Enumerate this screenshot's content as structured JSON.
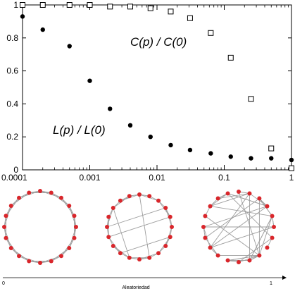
{
  "chart_data": {
    "type": "scatter",
    "x_scale": "log",
    "xlim": [
      0.0001,
      1
    ],
    "ylim": [
      0,
      1
    ],
    "x_ticks": [
      "0.0001",
      "0.001",
      "0.01",
      "0.1",
      "1"
    ],
    "y_ticks": [
      "0",
      "0.2",
      "0.4",
      "0.6",
      "0.8",
      "1"
    ],
    "series": [
      {
        "name": "C(p) / C(0)",
        "marker": "open-square",
        "color": "#000000",
        "x": [
          0.0001,
          0.0002,
          0.0005,
          0.001,
          0.002,
          0.004,
          0.008,
          0.016,
          0.031,
          0.063,
          0.125,
          0.25,
          0.5,
          1
        ],
        "y": [
          1.0,
          1.0,
          1.0,
          1.0,
          0.99,
          0.99,
          0.98,
          0.96,
          0.92,
          0.83,
          0.68,
          0.43,
          0.13,
          0.01
        ]
      },
      {
        "name": "L(p) / L(0)",
        "marker": "filled-circle",
        "color": "#000000",
        "x": [
          0.0001,
          0.0002,
          0.0005,
          0.001,
          0.002,
          0.004,
          0.008,
          0.016,
          0.031,
          0.063,
          0.125,
          0.25,
          0.5,
          1
        ],
        "y": [
          0.93,
          0.85,
          0.75,
          0.54,
          0.37,
          0.27,
          0.2,
          0.15,
          0.12,
          0.1,
          0.08,
          0.07,
          0.07,
          0.06
        ]
      }
    ],
    "annotations": [
      "C(p) / C(0)",
      "L(p) / L(0)"
    ]
  },
  "networks": {
    "node_color": "#d9262b",
    "edge_color": "#9e9e9e",
    "axis_start": "0",
    "axis_end": "1",
    "axis_label": "Aleatoriedad"
  }
}
